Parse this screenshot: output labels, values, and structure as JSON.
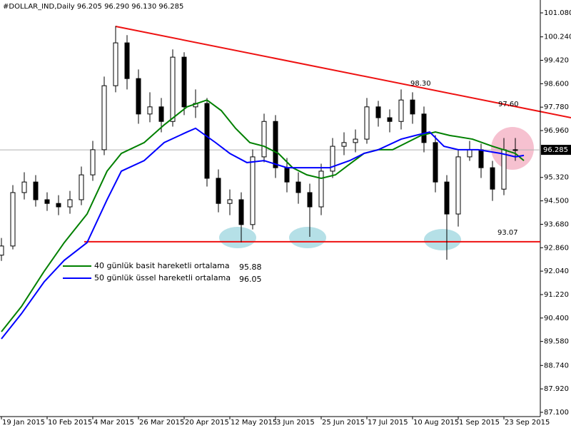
{
  "chart_data": {
    "type": "candlestick",
    "title": "#DOLLAR_IND,Daily  96.205 96.290 96.130 96.285",
    "x": [
      0,
      4,
      8,
      12,
      16,
      20,
      24,
      28,
      32,
      36,
      40,
      44,
      48,
      52,
      56,
      60,
      64,
      68,
      72,
      76,
      80,
      84,
      88,
      92,
      96,
      100,
      104,
      108,
      112,
      116,
      120,
      124,
      128,
      132,
      136,
      140,
      144,
      148,
      152,
      156,
      160,
      164,
      168,
      172,
      176,
      180
    ],
    "open": [
      92.6,
      92.92,
      94.79,
      95.16,
      94.54,
      94.41,
      94.29,
      94.54,
      95.41,
      96.29,
      98.53,
      100.03,
      98.78,
      97.54,
      97.79,
      97.28,
      99.53,
      97.79,
      97.91,
      95.29,
      94.41,
      94.54,
      93.67,
      96.04,
      97.28,
      95.66,
      95.16,
      94.79,
      94.29,
      95.54,
      96.41,
      96.54,
      96.66,
      97.79,
      97.41,
      97.28,
      98.03,
      97.54,
      96.54,
      95.16,
      94.04,
      96.04,
      96.29,
      95.66,
      94.91,
      96.29
    ],
    "high": [
      93.2,
      95.05,
      95.5,
      95.4,
      94.8,
      94.7,
      94.85,
      95.7,
      96.6,
      98.85,
      100.62,
      100.3,
      99.1,
      98.3,
      98.1,
      99.8,
      99.7,
      98.4,
      98.1,
      95.6,
      94.9,
      94.8,
      96.3,
      97.55,
      97.5,
      96.0,
      95.5,
      95.1,
      95.8,
      96.7,
      96.9,
      97.0,
      98.1,
      98.0,
      97.7,
      98.4,
      98.3,
      97.8,
      96.8,
      95.4,
      96.3,
      96.6,
      96.5,
      95.9,
      96.7,
      96.7
    ],
    "low": [
      92.4,
      92.8,
      94.55,
      94.3,
      94.15,
      94.0,
      94.05,
      94.35,
      95.2,
      96.1,
      98.3,
      98.4,
      97.2,
      97.25,
      96.9,
      97.1,
      97.5,
      97.4,
      95.0,
      94.1,
      94.0,
      93.05,
      93.5,
      95.85,
      95.3,
      94.8,
      94.4,
      93.24,
      94.0,
      95.3,
      96.1,
      96.2,
      96.5,
      97.1,
      96.9,
      97.0,
      97.2,
      96.2,
      94.8,
      92.44,
      93.6,
      95.9,
      95.3,
      94.5,
      94.7,
      95.9
    ],
    "close": [
      92.92,
      94.79,
      95.16,
      94.54,
      94.41,
      94.29,
      94.54,
      95.41,
      96.29,
      98.53,
      100.03,
      98.78,
      97.54,
      97.79,
      97.28,
      99.53,
      97.79,
      97.91,
      95.29,
      94.41,
      94.54,
      93.67,
      96.04,
      97.28,
      95.66,
      95.16,
      94.79,
      94.29,
      95.54,
      96.41,
      96.54,
      96.66,
      97.79,
      97.41,
      97.28,
      98.03,
      97.54,
      96.54,
      95.16,
      94.04,
      96.04,
      96.29,
      95.66,
      94.91,
      96.29,
      96.285
    ],
    "series": [
      {
        "name": "40 günlük basit hareketli ortalama",
        "last_label": "95.88",
        "color": "#008000",
        "x": [
          0,
          7,
          15,
          22,
          30,
          37,
          42,
          50,
          57,
          65,
          72,
          77,
          82,
          87,
          92,
          97,
          102,
          107,
          112,
          117,
          122,
          127,
          132,
          137,
          142,
          147,
          152,
          157,
          165,
          172,
          180,
          183
        ],
        "values": [
          89.92,
          90.8,
          92.04,
          93.04,
          94.04,
          95.54,
          96.16,
          96.54,
          97.16,
          97.79,
          98.03,
          97.66,
          97.04,
          96.54,
          96.41,
          96.16,
          95.66,
          95.41,
          95.29,
          95.41,
          95.79,
          96.16,
          96.29,
          96.29,
          96.54,
          96.79,
          96.91,
          96.79,
          96.66,
          96.41,
          96.16,
          95.91
        ]
      },
      {
        "name": "50 günlük üssel hareketli ortalama",
        "last_label": "96.05",
        "color": "#0000ff",
        "x": [
          0,
          7,
          15,
          22,
          30,
          37,
          42,
          50,
          57,
          65,
          68,
          75,
          80,
          86,
          92,
          100,
          107,
          115,
          122,
          127,
          132,
          140,
          145,
          150,
          155,
          160,
          167,
          175,
          180,
          183
        ],
        "values": [
          89.67,
          90.55,
          91.67,
          92.42,
          93.04,
          94.54,
          95.54,
          95.91,
          96.54,
          96.91,
          97.04,
          96.54,
          96.16,
          95.84,
          95.91,
          95.66,
          95.66,
          95.66,
          95.91,
          96.16,
          96.29,
          96.66,
          96.79,
          96.91,
          96.41,
          96.29,
          96.29,
          96.16,
          96.04,
          96.09
        ]
      }
    ],
    "support": {
      "value": 93.07,
      "label": "93.07"
    },
    "annotations": [
      "98.30",
      "97.60"
    ],
    "current_price": {
      "value": 96.285,
      "label": "96.285"
    },
    "xlim": [
      -0.5,
      188.75
    ],
    "ylim": [
      86.95,
      101.53
    ],
    "xticks": [
      {
        "value": 0,
        "label": "19 Jan 2015"
      },
      {
        "value": 16,
        "label": "10 Feb 2015"
      },
      {
        "value": 32,
        "label": "4 Mar 2015"
      },
      {
        "value": 48,
        "label": "26 Mar 2015"
      },
      {
        "value": 64,
        "label": "20 Apr 2015"
      },
      {
        "value": 80,
        "label": "12 May 2015"
      },
      {
        "value": 96,
        "label": "3 Jun 2015"
      },
      {
        "value": 112,
        "label": "25 Jun 2015"
      },
      {
        "value": 128,
        "label": "17 Jul 2015"
      },
      {
        "value": 144,
        "label": "10 Aug 2015"
      },
      {
        "value": 160,
        "label": "1 Sep 2015"
      },
      {
        "value": 176,
        "label": "23 Sep 2015"
      }
    ],
    "yticks": [
      {
        "value": 101.08,
        "label": "101.080"
      },
      {
        "value": 100.24,
        "label": "100.240"
      },
      {
        "value": 99.42,
        "label": "99.420"
      },
      {
        "value": 98.6,
        "label": "98.600"
      },
      {
        "value": 97.78,
        "label": "97.780"
      },
      {
        "value": 96.96,
        "label": "96.960"
      },
      {
        "value": 95.32,
        "label": "95.320"
      },
      {
        "value": 94.5,
        "label": "94.500"
      },
      {
        "value": 93.68,
        "label": "93.680"
      },
      {
        "value": 92.86,
        "label": "92.860"
      },
      {
        "value": 92.04,
        "label": "92.040"
      },
      {
        "value": 91.22,
        "label": "91.220"
      },
      {
        "value": 90.4,
        "label": "90.400"
      },
      {
        "value": 89.58,
        "label": "89.580"
      },
      {
        "value": 88.74,
        "label": "88.740"
      },
      {
        "value": 87.92,
        "label": "87.920"
      },
      {
        "value": 87.1,
        "label": "87.100"
      }
    ]
  }
}
